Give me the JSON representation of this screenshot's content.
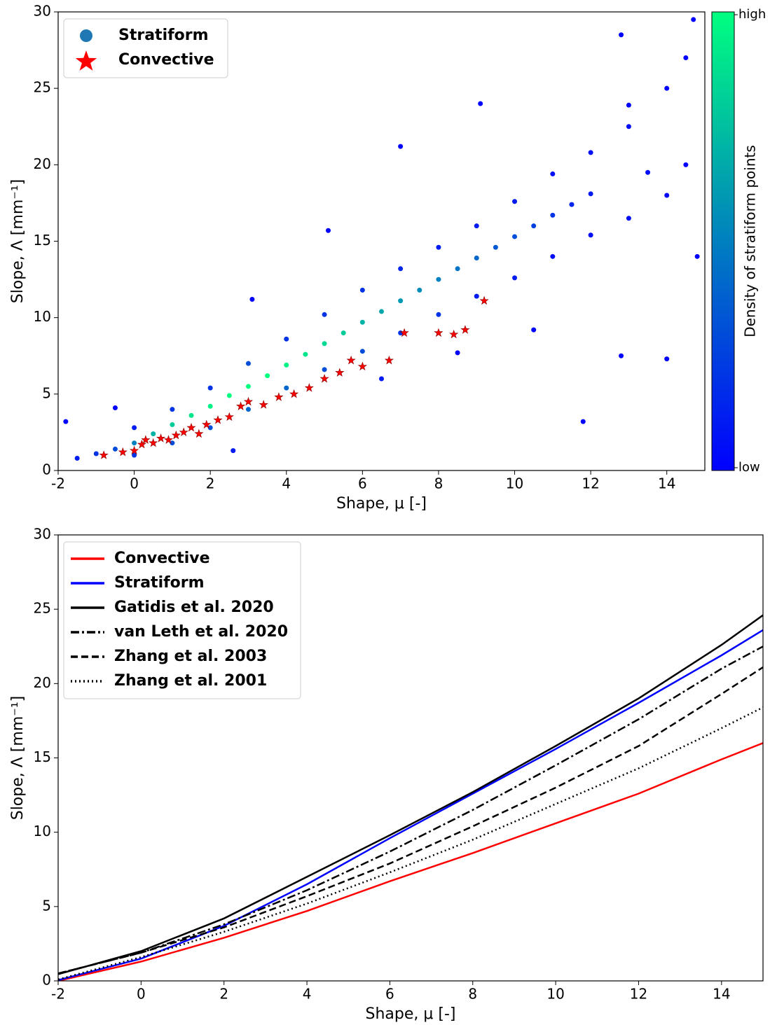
{
  "chart_data": [
    {
      "type": "scatter",
      "xlabel": "Shape, μ [-]",
      "ylabel": "Slope, Λ [mm⁻¹]",
      "xlim": [
        -2,
        15
      ],
      "xticks": [
        -2,
        0,
        2,
        4,
        6,
        8,
        10,
        12,
        14
      ],
      "ylim": [
        0,
        30
      ],
      "yticks": [
        0,
        5,
        10,
        15,
        20,
        25,
        30
      ],
      "legend": "upper left",
      "colorbar": {
        "label": "Density of stratiform points",
        "colors": [
          "#0000ff",
          "#00ff80"
        ],
        "ticks": [
          {
            "value": 1,
            "label": "high"
          },
          {
            "value": 0,
            "label": "low"
          }
        ]
      },
      "series": [
        {
          "name": "Stratiform",
          "color": "#1f77b4",
          "marker": "circle",
          "x": [
            -1.5,
            -1,
            -0.5,
            0,
            0.5,
            1,
            1.5,
            2,
            2.5,
            3,
            3.5,
            4,
            4.5,
            5,
            5.5,
            6,
            6.5,
            7,
            7.5,
            8,
            8.5,
            9,
            9.5,
            10,
            10.5,
            11,
            11.5,
            12,
            0,
            0,
            1,
            1,
            2,
            2,
            3,
            3,
            4,
            4,
            5,
            5,
            6,
            6,
            7,
            7,
            8,
            8,
            9,
            9,
            10,
            10,
            11,
            11,
            12,
            12,
            13,
            13,
            14,
            14,
            14.5,
            14.5,
            13.5,
            14.8,
            14.7,
            -1.8,
            -0.5,
            3.1,
            5.1,
            9.1,
            11.8,
            12.8,
            14,
            10.5,
            13,
            12.8,
            6.5,
            8.5,
            7,
            2.6
          ],
          "values": [
            0.8,
            1.1,
            1.4,
            1.8,
            2.4,
            3.0,
            3.6,
            4.2,
            4.9,
            5.5,
            6.2,
            6.9,
            7.6,
            8.3,
            9.0,
            9.7,
            10.4,
            11.1,
            11.8,
            12.5,
            13.2,
            13.9,
            14.6,
            15.3,
            16.0,
            16.7,
            17.4,
            18.1,
            1.0,
            2.8,
            1.8,
            4.0,
            2.8,
            5.4,
            4.0,
            7.0,
            5.4,
            8.6,
            6.6,
            10.2,
            7.8,
            11.8,
            9.0,
            13.2,
            10.2,
            14.6,
            11.4,
            16.0,
            12.6,
            17.6,
            14.0,
            19.4,
            15.4,
            20.8,
            16.5,
            22.5,
            18.0,
            25.0,
            20.0,
            27.0,
            19.5,
            14,
            29.5,
            3.2,
            4.1,
            11.2,
            15.7,
            24,
            3.2,
            7.5,
            7.3,
            9.2,
            23.9,
            28.5,
            6.0,
            7.7,
            21.2,
            1.3
          ],
          "density": [
            0.1,
            0.2,
            0.3,
            0.5,
            0.7,
            0.8,
            0.9,
            0.95,
            1,
            1,
            1,
            0.95,
            0.9,
            0.85,
            0.8,
            0.7,
            0.65,
            0.6,
            0.55,
            0.5,
            0.45,
            0.4,
            0.35,
            0.3,
            0.25,
            0.2,
            0.15,
            0.1,
            0.2,
            0.1,
            0.3,
            0.2,
            0.3,
            0.2,
            0.4,
            0.3,
            0.4,
            0.2,
            0.3,
            0.2,
            0.3,
            0.2,
            0.2,
            0.15,
            0.2,
            0.1,
            0.1,
            0.1,
            0.1,
            0.1,
            0.05,
            0.05,
            0.05,
            0.05,
            0.05,
            0.05,
            0,
            0,
            0,
            0,
            0.05,
            0,
            0,
            0,
            0,
            0,
            0,
            0,
            0,
            0,
            0,
            0,
            0,
            0,
            0.1,
            0,
            0,
            0.1
          ]
        },
        {
          "name": "Convective",
          "color": "#ff0000",
          "marker": "star",
          "x": [
            -0.8,
            -0.3,
            0,
            0.2,
            0.3,
            0.5,
            0.7,
            0.9,
            1.1,
            1.3,
            1.5,
            1.7,
            1.9,
            2.2,
            2.5,
            2.8,
            3.0,
            3.4,
            3.8,
            4.2,
            4.6,
            5.0,
            5.4,
            5.7,
            6.0,
            6.7,
            7.1,
            8.0,
            8.4,
            8.7,
            9.2
          ],
          "values": [
            1.0,
            1.2,
            1.3,
            1.7,
            2.0,
            1.8,
            2.1,
            2.0,
            2.3,
            2.5,
            2.8,
            2.4,
            3.0,
            3.3,
            3.5,
            4.2,
            4.5,
            4.3,
            4.8,
            5.0,
            5.4,
            6.0,
            6.4,
            7.2,
            6.8,
            7.2,
            9.0,
            9.0,
            8.9,
            9.2,
            11.1
          ]
        }
      ]
    },
    {
      "type": "line",
      "xlabel": "Shape, μ [-]",
      "ylabel": "Slope, Λ [mm⁻¹]",
      "xlim": [
        -2,
        15
      ],
      "xticks": [
        -2,
        0,
        2,
        4,
        6,
        8,
        10,
        12,
        14
      ],
      "ylim": [
        0,
        30
      ],
      "yticks": [
        0,
        5,
        10,
        15,
        20,
        25,
        30
      ],
      "legend": "upper left",
      "x": [
        -2,
        0,
        2,
        4,
        6,
        8,
        10,
        12,
        14,
        15
      ],
      "series": [
        {
          "name": "Convective",
          "color": "#ff0000",
          "dash": "solid",
          "values": [
            0.0,
            1.3,
            2.9,
            4.7,
            6.7,
            8.6,
            10.6,
            12.6,
            14.9,
            16.0
          ]
        },
        {
          "name": "Stratiform",
          "color": "#0000ff",
          "dash": "solid",
          "values": [
            0.05,
            1.5,
            3.7,
            6.5,
            9.6,
            12.6,
            15.6,
            18.7,
            21.9,
            23.6
          ]
        },
        {
          "name": "Gatidis et al. 2020",
          "color": "#000000",
          "dash": "solid",
          "values": [
            0.45,
            2.0,
            4.2,
            7.0,
            9.8,
            12.7,
            15.8,
            19.0,
            22.6,
            24.6
          ]
        },
        {
          "name": "van Leth et al. 2020",
          "color": "#000000",
          "dash": "dashdot",
          "values": [
            0.5,
            1.9,
            3.8,
            6.1,
            8.7,
            11.5,
            14.5,
            17.6,
            21.0,
            22.5
          ]
        },
        {
          "name": "Zhang et al. 2003",
          "color": "#000000",
          "dash": "dashed",
          "values": [
            0.5,
            1.9,
            3.6,
            5.7,
            7.9,
            10.4,
            13.0,
            15.8,
            19.3,
            21.1
          ]
        },
        {
          "name": "Zhang et al. 2001",
          "color": "#000000",
          "dash": "dotted",
          "values": [
            0.1,
            1.6,
            3.3,
            5.2,
            7.3,
            9.5,
            11.9,
            14.3,
            17.0,
            18.4
          ]
        }
      ]
    }
  ]
}
